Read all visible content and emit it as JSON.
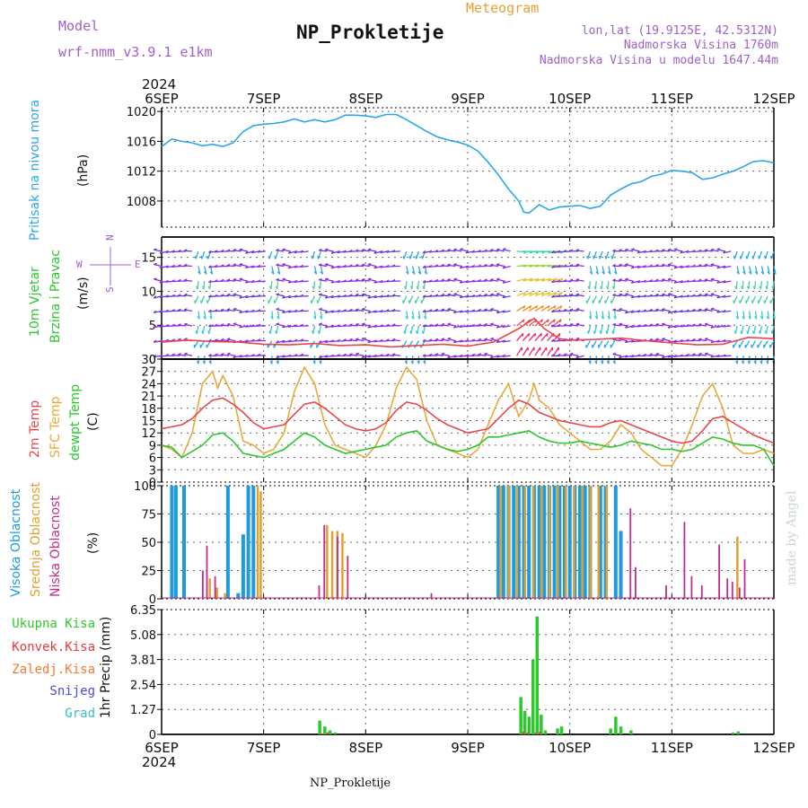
{
  "header": {
    "model_label": "Model",
    "model_name": "wrf-nmm_v3.9.1 e1km",
    "title": "NP_Prokletije",
    "subtitle": "Meteogram",
    "coords": "lon,lat (19.9125E, 42.5312N)",
    "altitude": "Nadmorska Visina 1760m",
    "model_altitude": "Nadmorska Visina u modelu 1647.44m",
    "footer_station": "NP_Prokletije",
    "credit": "made by Angel"
  },
  "colors": {
    "pressure": "#2aa7e8",
    "temp2m": "#e8474a",
    "sfc": "#e8a93a",
    "dewpt": "#2bc82b",
    "high_cloud": "#1e9be0",
    "mid_cloud": "#e0a030",
    "low_cloud": "#c02d8c",
    "total_precip": "#2ec82e",
    "conv_precip": "#e83a3a",
    "frozen_precip": "#f07a30",
    "snow": "#4a4ae0",
    "hail": "#30c0c0",
    "title_purple": "#a060c8",
    "title_orange": "#e8a030"
  },
  "time_axis": {
    "year": "2024",
    "ticks": [
      "6SEP",
      "7SEP",
      "8SEP",
      "9SEP",
      "10SEP",
      "11SEP",
      "12SEP"
    ]
  },
  "panels": {
    "pressure": {
      "ylabel_name": "Pritisak na nivou mora",
      "unit": "(hPa)",
      "ticks": [
        "1008",
        "1012",
        "1016",
        "1020"
      ]
    },
    "wind": {
      "ylabel_name_1": "10m Vjetar",
      "ylabel_name_2": "Brzina i Pravac",
      "unit": "(m/s)",
      "ticks": [
        "0",
        "5",
        "10",
        "15"
      ],
      "compass": {
        "n": "N",
        "s": "S",
        "e": "E",
        "w": "W"
      }
    },
    "temperature": {
      "label_temp2m": "2m Temp",
      "label_sfc": "SFC Temp",
      "label_dewpt": "dewpt Temp",
      "unit": "(C)",
      "ticks": [
        "0",
        "3",
        "6",
        "9",
        "12",
        "15",
        "18",
        "21",
        "24",
        "27",
        "30"
      ]
    },
    "clouds": {
      "label_high": "Visoka Oblacnost",
      "label_mid": "Srednja Oblacnost",
      "label_low": "Niska Oblacnost",
      "unit": "(%)",
      "ticks": [
        "0",
        "25",
        "50",
        "75",
        "100"
      ]
    },
    "precip": {
      "ylabel": "1hr Precip (mm)",
      "ticks": [
        "0",
        "1.27",
        "2.54",
        "3.81",
        "5.08",
        "6.35"
      ],
      "legend": [
        "Ukupna Kisa",
        "Konvek.Kisa",
        "Zaledj.Kisa",
        "Snijeg",
        "Grad"
      ]
    }
  },
  "chart_data": [
    {
      "type": "line",
      "title": "Pritisak na nivou mora",
      "ylabel": "(hPa)",
      "ylim": [
        1004.5,
        1020.5
      ],
      "x_unit": "days from 6SEP 00Z",
      "series": [
        {
          "name": "Pritisak na nivou mora",
          "x": [
            0,
            0.1,
            0.2,
            0.3,
            0.4,
            0.5,
            0.6,
            0.7,
            0.8,
            0.9,
            1.0,
            1.1,
            1.2,
            1.3,
            1.4,
            1.5,
            1.6,
            1.7,
            1.8,
            1.9,
            2.0,
            2.1,
            2.2,
            2.3,
            2.4,
            2.5,
            2.6,
            2.7,
            2.8,
            2.9,
            3.0,
            3.1,
            3.2,
            3.3,
            3.4,
            3.5,
            3.55,
            3.6,
            3.7,
            3.8,
            3.9,
            4.0,
            4.1,
            4.2,
            4.3,
            4.4,
            4.5,
            4.6,
            4.7,
            4.8,
            4.9,
            5.0,
            5.1,
            5.2,
            5.3,
            5.4,
            5.5,
            5.6,
            5.7,
            5.8,
            5.9,
            6.0
          ],
          "values": [
            1015.3,
            1016.3,
            1016.0,
            1015.8,
            1015.4,
            1015.6,
            1015.3,
            1015.8,
            1017.3,
            1018.1,
            1018.3,
            1018.4,
            1018.6,
            1019.0,
            1018.6,
            1018.9,
            1018.6,
            1018.9,
            1019.5,
            1019.5,
            1019.4,
            1019.2,
            1019.6,
            1019.6,
            1018.9,
            1018.1,
            1017.3,
            1016.6,
            1016.2,
            1015.9,
            1015.5,
            1014.7,
            1013.2,
            1011.5,
            1009.6,
            1008.0,
            1006.5,
            1006.4,
            1007.5,
            1006.8,
            1007.2,
            1007.3,
            1007.4,
            1007.0,
            1007.3,
            1008.8,
            1009.6,
            1010.3,
            1010.6,
            1011.3,
            1011.6,
            1012.1,
            1012.0,
            1011.8,
            1010.9,
            1011.1,
            1011.6,
            1012.0,
            1012.6,
            1013.3,
            1013.4,
            1013.1
          ]
        }
      ]
    },
    {
      "type": "line",
      "title": "10m Vjetar Brzina i Pravac",
      "ylabel": "(m/s)",
      "ylim": [
        0,
        18
      ],
      "x_unit": "days from 6SEP 00Z",
      "series": [
        {
          "name": "10m Vjetar",
          "x": [
            0,
            0.25,
            0.5,
            0.75,
            1.0,
            1.25,
            1.5,
            1.75,
            2.0,
            2.25,
            2.5,
            2.75,
            3.0,
            3.25,
            3.5,
            3.65,
            3.75,
            3.9,
            4.0,
            4.25,
            4.5,
            4.75,
            5.0,
            5.25,
            5.5,
            5.75,
            6.0
          ],
          "values": [
            2.5,
            2.8,
            2.6,
            2.5,
            2.2,
            2.1,
            2.3,
            2.0,
            2.1,
            1.8,
            2.0,
            2.2,
            1.9,
            2.5,
            4.5,
            6.0,
            4.5,
            3.0,
            2.8,
            2.9,
            3.1,
            2.7,
            2.4,
            2.1,
            2.2,
            3.2,
            3.0
          ]
        }
      ]
    },
    {
      "type": "line",
      "title": "2m Temp / SFC Temp / dewpt Temp",
      "ylabel": "(C)",
      "ylim": [
        0,
        30
      ],
      "x_unit": "days from 6SEP 00Z",
      "series": [
        {
          "name": "2m Temp",
          "x": [
            0,
            0.1,
            0.2,
            0.3,
            0.4,
            0.5,
            0.6,
            0.7,
            0.8,
            0.9,
            1.0,
            1.1,
            1.2,
            1.3,
            1.4,
            1.5,
            1.6,
            1.7,
            1.8,
            1.9,
            2.0,
            2.1,
            2.2,
            2.3,
            2.4,
            2.5,
            2.6,
            2.7,
            2.8,
            2.9,
            3.0,
            3.1,
            3.2,
            3.3,
            3.4,
            3.5,
            3.6,
            3.7,
            3.8,
            3.9,
            4.0,
            4.1,
            4.2,
            4.3,
            4.4,
            4.5,
            4.6,
            4.7,
            4.8,
            4.9,
            5.0,
            5.1,
            5.2,
            5.3,
            5.4,
            5.5,
            5.6,
            5.7,
            5.8,
            5.9,
            6.0
          ],
          "values": [
            13,
            13.5,
            14,
            15.5,
            18,
            20,
            20.5,
            19,
            17,
            14.5,
            13,
            13.5,
            14,
            16.5,
            19,
            19.5,
            18,
            16,
            14,
            13,
            12.5,
            13,
            14.5,
            17.5,
            19.5,
            19,
            17.5,
            15.5,
            14,
            13,
            12,
            12.5,
            13,
            15.5,
            18,
            20,
            19,
            17,
            16,
            15,
            14.5,
            14,
            13.5,
            13.5,
            14.5,
            15,
            14,
            13,
            12,
            11,
            10,
            9.5,
            10,
            12.5,
            15.5,
            16,
            14.5,
            13,
            11.5,
            10.5,
            9.5
          ]
        },
        {
          "name": "SFC Temp",
          "x": [
            0,
            0.1,
            0.2,
            0.3,
            0.4,
            0.5,
            0.55,
            0.6,
            0.7,
            0.8,
            0.9,
            1.0,
            1.1,
            1.2,
            1.3,
            1.4,
            1.5,
            1.6,
            1.7,
            1.8,
            1.9,
            2.0,
            2.1,
            2.2,
            2.3,
            2.4,
            2.5,
            2.6,
            2.7,
            2.8,
            2.9,
            3.0,
            3.1,
            3.2,
            3.3,
            3.4,
            3.5,
            3.6,
            3.65,
            3.7,
            3.8,
            3.9,
            4.0,
            4.1,
            4.2,
            4.3,
            4.4,
            4.5,
            4.6,
            4.7,
            4.8,
            4.9,
            5.0,
            5.1,
            5.2,
            5.3,
            5.4,
            5.5,
            5.6,
            5.7,
            5.8,
            5.9,
            6.0
          ],
          "values": [
            9,
            8,
            6,
            12,
            24,
            27,
            23,
            26,
            21,
            10,
            9,
            7,
            8,
            12,
            22,
            28,
            24,
            14,
            9,
            8,
            7,
            6,
            9,
            14,
            23,
            28,
            25,
            15,
            9,
            8,
            7,
            6,
            8,
            14,
            20,
            24,
            16,
            20,
            24,
            20,
            18,
            14,
            12,
            10,
            8,
            8,
            10,
            14,
            12,
            8,
            6,
            4,
            4,
            8,
            14,
            21,
            24,
            18,
            9,
            7,
            7,
            8,
            7
          ]
        },
        {
          "name": "dewpt Temp",
          "x": [
            0,
            0.1,
            0.2,
            0.3,
            0.4,
            0.5,
            0.6,
            0.7,
            0.8,
            0.9,
            1.0,
            1.1,
            1.2,
            1.3,
            1.4,
            1.5,
            1.6,
            1.7,
            1.8,
            1.9,
            2.0,
            2.1,
            2.2,
            2.3,
            2.4,
            2.5,
            2.6,
            2.7,
            2.8,
            2.9,
            3.0,
            3.1,
            3.2,
            3.3,
            3.4,
            3.5,
            3.6,
            3.7,
            3.8,
            3.9,
            4.0,
            4.1,
            4.2,
            4.3,
            4.4,
            4.5,
            4.6,
            4.7,
            4.8,
            4.9,
            5.0,
            5.1,
            5.2,
            5.3,
            5.4,
            5.5,
            5.6,
            5.7,
            5.8,
            5.9,
            6.0
          ],
          "values": [
            9,
            8.5,
            6,
            7.5,
            9,
            11.5,
            12,
            10,
            7,
            6.5,
            6,
            7,
            8,
            10,
            12,
            11,
            9,
            8,
            7,
            7.5,
            8,
            8.5,
            9,
            11,
            12,
            12.5,
            10,
            9,
            8,
            7.5,
            8,
            9,
            11,
            11,
            11.5,
            12,
            12.5,
            11,
            10,
            9.5,
            9.5,
            10,
            9.5,
            9,
            8.5,
            9,
            10,
            9.5,
            9,
            8,
            8,
            7.5,
            8,
            9.5,
            11,
            10.5,
            9.5,
            9,
            9,
            8,
            4
          ]
        }
      ]
    },
    {
      "type": "bar",
      "title": "Visoka / Srednja / Niska Oblacnost",
      "ylabel": "(%)",
      "ylim": [
        0,
        100
      ],
      "x_unit": "days from 6SEP 00Z",
      "series": [
        {
          "name": "Visoka Oblacnost",
          "x": [
            0.1,
            0.14,
            0.22,
            0.65,
            0.75,
            0.8,
            0.85,
            0.9,
            3.3,
            3.35,
            3.4,
            3.45,
            3.5,
            3.55,
            3.6,
            3.65,
            3.7,
            3.75,
            3.8,
            3.85,
            3.9,
            3.95,
            4.0,
            4.05,
            4.1,
            4.15,
            4.2,
            4.3,
            4.35,
            4.45,
            4.5
          ],
          "values": [
            100,
            100,
            100,
            100,
            5,
            57,
            100,
            100,
            100,
            100,
            100,
            100,
            100,
            100,
            100,
            100,
            100,
            100,
            100,
            100,
            100,
            100,
            100,
            100,
            100,
            100,
            100,
            100,
            100,
            100,
            60
          ]
        },
        {
          "name": "Srednja Oblacnost",
          "x": [
            0.45,
            0.52,
            0.6,
            0.92,
            0.95,
            1.6,
            1.65,
            1.7,
            1.75,
            3.3,
            3.38,
            3.46,
            3.54,
            3.62,
            3.7,
            3.78,
            3.86,
            3.94,
            4.02,
            4.1,
            4.18,
            4.26,
            4.34,
            5.62
          ],
          "values": [
            18,
            10,
            5,
            100,
            95,
            65,
            60,
            60,
            58,
            100,
            100,
            100,
            100,
            100,
            100,
            100,
            100,
            100,
            100,
            100,
            100,
            100,
            100,
            55
          ]
        },
        {
          "name": "Niska Oblacnost",
          "x": [
            0.36,
            0.4,
            0.48,
            1.5,
            1.55,
            1.68,
            1.78,
            2.6,
            4.55,
            4.6,
            4.9,
            5.08,
            5.15,
            5.25,
            5.42,
            5.5,
            5.55,
            5.62,
            5.67
          ],
          "values": [
            25,
            47,
            20,
            12,
            65,
            55,
            38,
            5,
            80,
            28,
            12,
            68,
            20,
            12,
            48,
            18,
            15,
            10,
            35
          ]
        }
      ]
    },
    {
      "type": "bar",
      "title": "1hr Precip",
      "ylabel": "1hr Precip (mm)",
      "ylim": [
        0,
        6.35
      ],
      "x_unit": "days from 6SEP 00Z",
      "series": [
        {
          "name": "Ukupna Kisa",
          "x": [
            1.55,
            1.6,
            1.65,
            1.7,
            3.52,
            3.56,
            3.6,
            3.64,
            3.68,
            3.72,
            3.76,
            3.88,
            3.92,
            4.4,
            4.45,
            4.5,
            4.6,
            5.6,
            5.65
          ],
          "values": [
            0.7,
            0.4,
            0.2,
            0.1,
            1.9,
            1.2,
            0.9,
            3.8,
            6.0,
            1.0,
            0.2,
            0.3,
            0.4,
            0.3,
            0.9,
            0.4,
            0.2,
            0.1,
            0.15
          ]
        },
        {
          "name": "Konvek.Kisa",
          "x": [
            1.55,
            1.6,
            3.52,
            3.56,
            3.64,
            3.68
          ],
          "values": [
            0.05,
            0.1,
            0.15,
            0.1,
            0.1,
            0.15
          ]
        }
      ]
    }
  ]
}
